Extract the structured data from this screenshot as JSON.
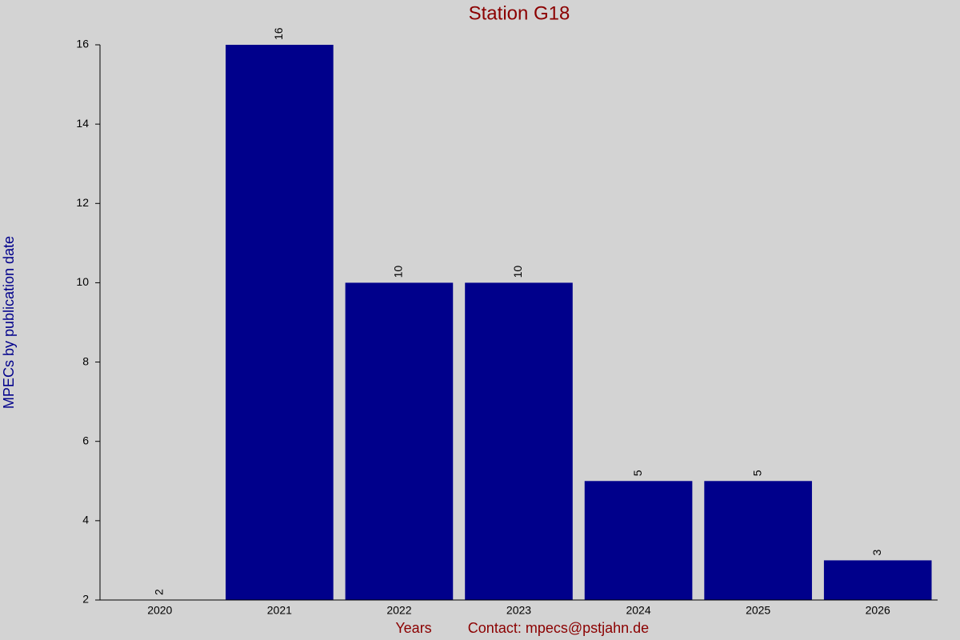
{
  "chart_data": {
    "type": "bar",
    "title": "Station G18",
    "x_label": "Years",
    "y_label": "MPECs by publication date",
    "footer": "Contact: mpecs@pstjahn.de",
    "categories": [
      "2020",
      "2021",
      "2022",
      "2023",
      "2024",
      "2025",
      "2026"
    ],
    "values": [
      2,
      16,
      10,
      10,
      5,
      5,
      3
    ],
    "color": "#00008b",
    "ylim": [
      2,
      16
    ],
    "yticks": [
      2,
      4,
      6,
      8,
      10,
      12,
      14,
      16
    ],
    "grid": false
  }
}
